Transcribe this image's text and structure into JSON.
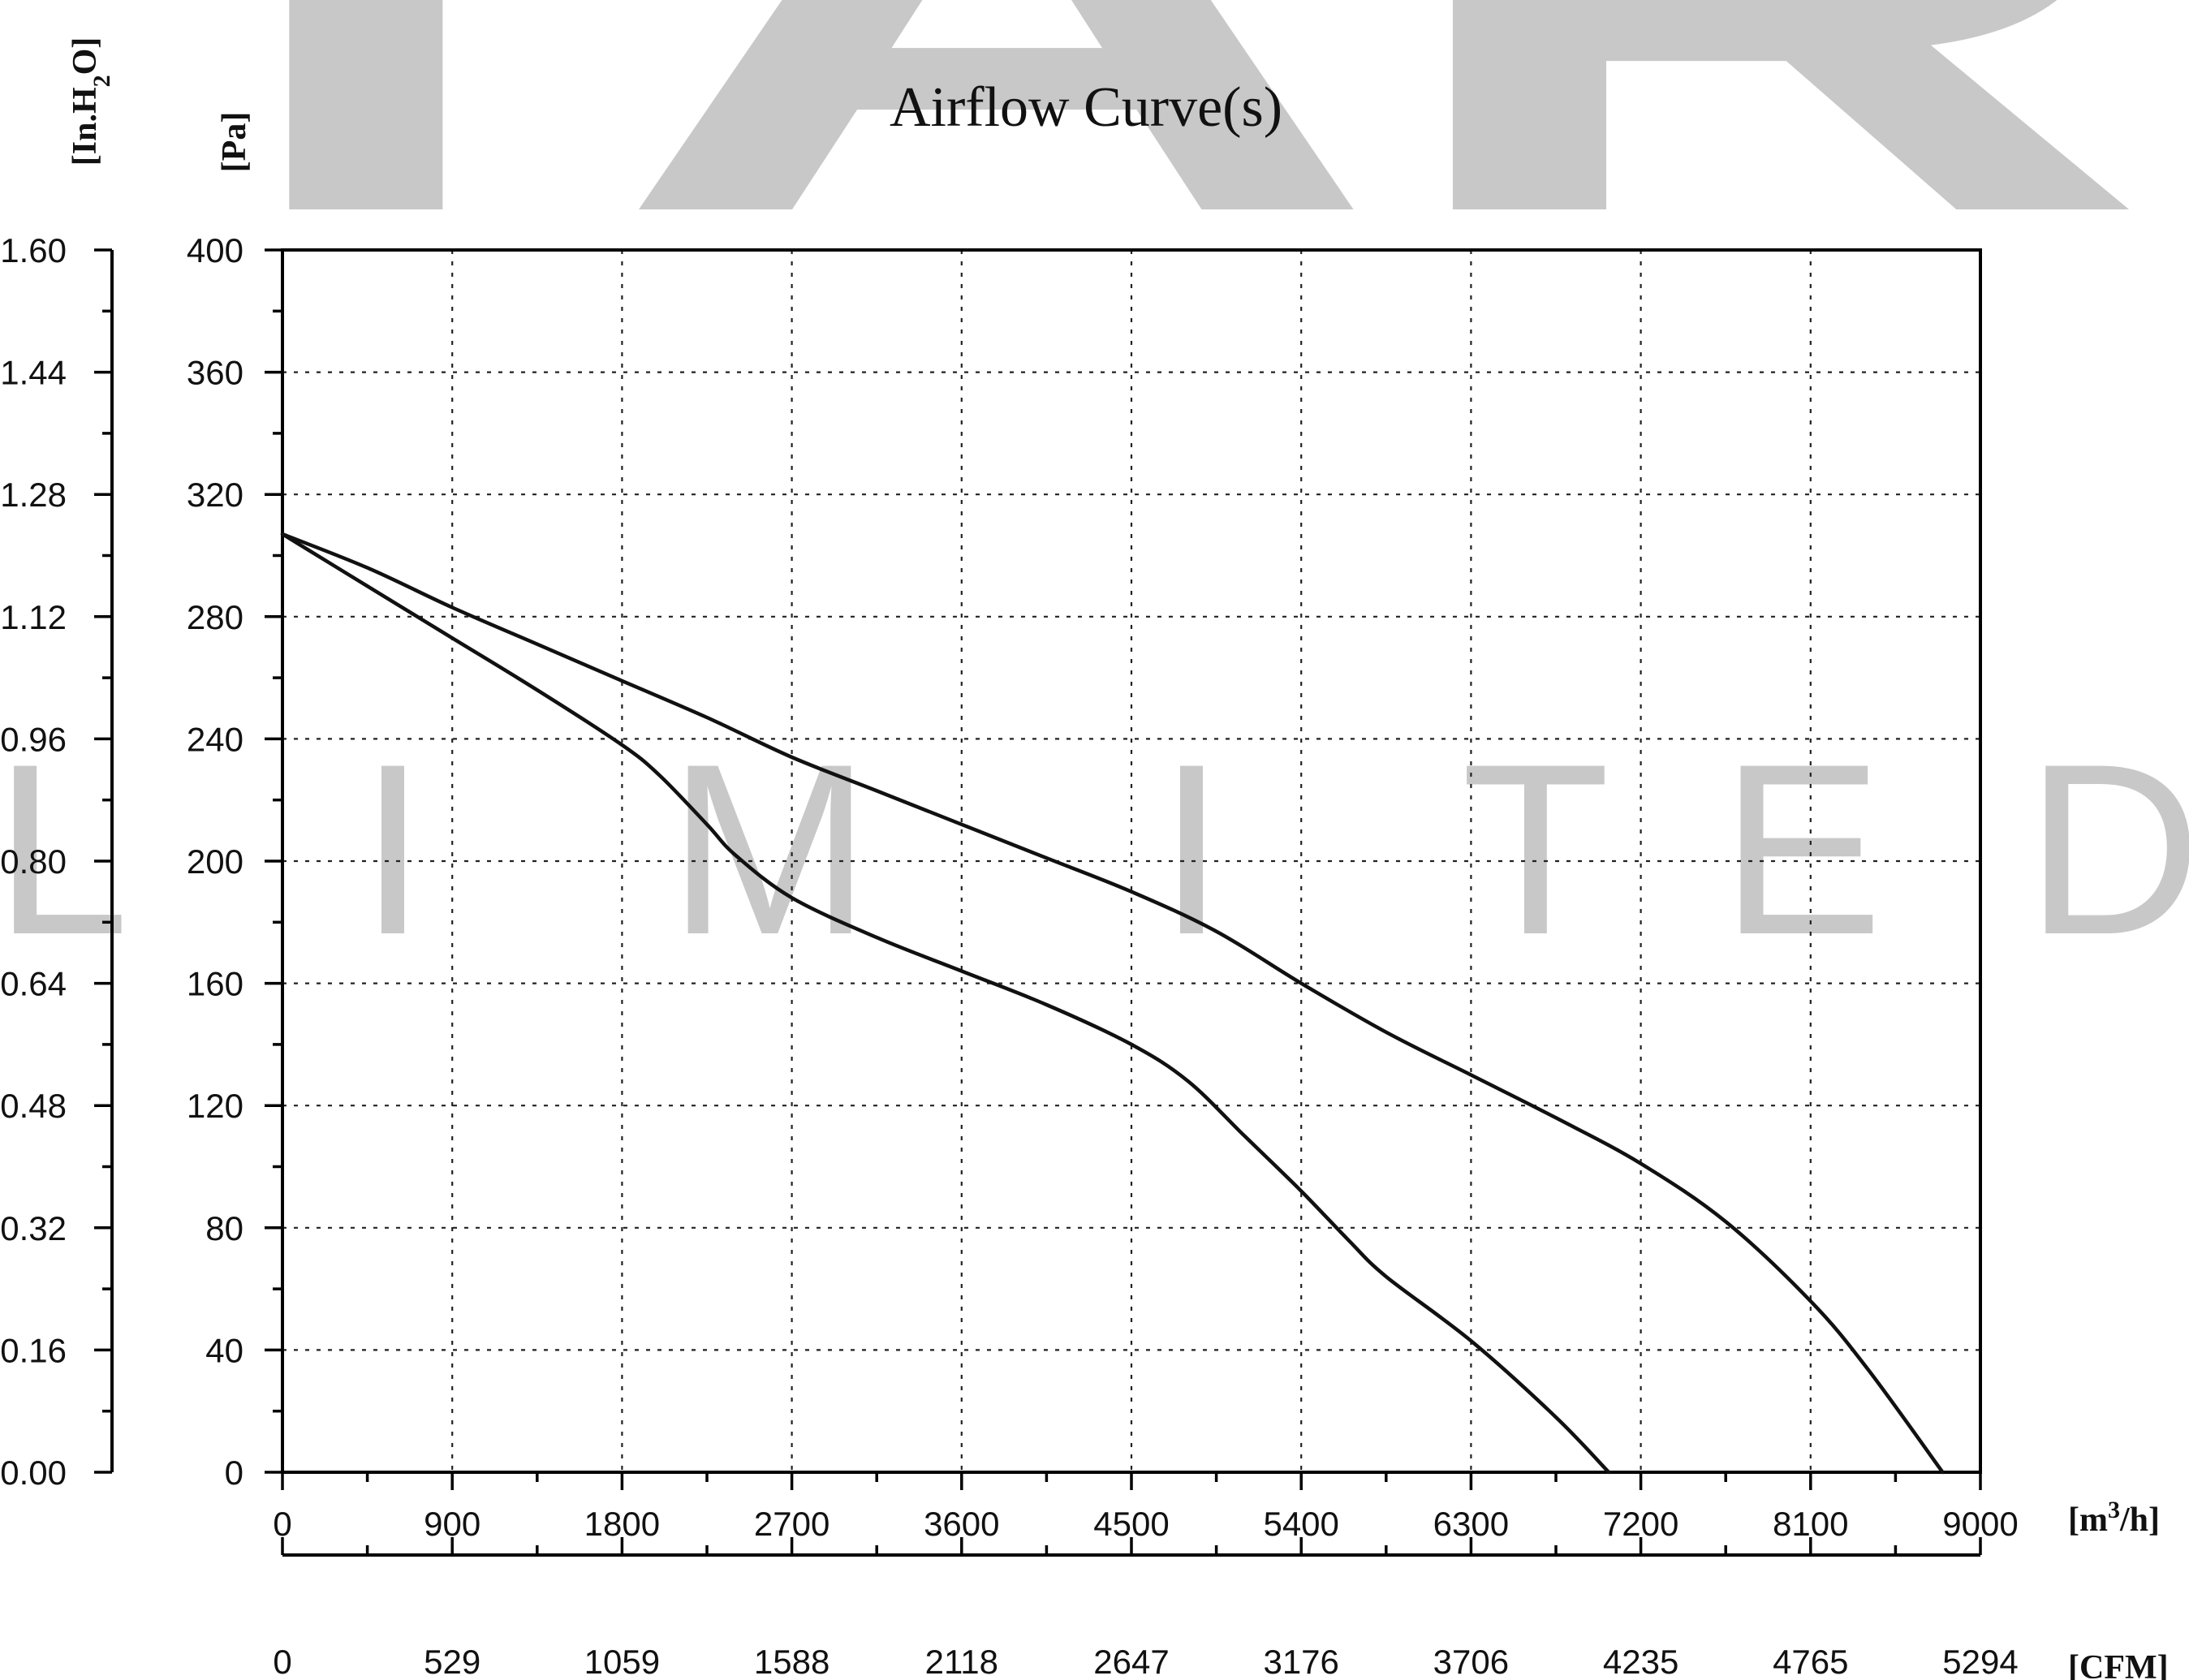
{
  "watermark": {
    "top_text": "TAR",
    "middle_letters": [
      "L",
      "I",
      "M",
      "I",
      "T",
      "E",
      "D"
    ],
    "color": "#c8c8c8"
  },
  "chart_data": {
    "type": "line",
    "title": "Airflow Curve(s)",
    "left_axis_unit": "[Pa]",
    "left_outer_axis_unit": "[In.H2O]",
    "x_unit": "[m³/h]",
    "x2_unit": "[CFM]",
    "xlim": [
      0,
      9000
    ],
    "ylim": [
      0,
      400
    ],
    "grid": true,
    "x_ticks": [
      "0",
      "900",
      "1800",
      "2700",
      "3600",
      "4500",
      "5400",
      "6300",
      "7200",
      "8100",
      "9000"
    ],
    "y_ticks": [
      "0",
      "40",
      "80",
      "120",
      "160",
      "200",
      "240",
      "280",
      "320",
      "360",
      "400"
    ],
    "x2_ticks": [
      "0",
      "529",
      "1059",
      "1588",
      "2118",
      "2647",
      "3176",
      "3706",
      "4235",
      "4765",
      "5294"
    ],
    "y2_ticks": [
      "0.00",
      "0.16",
      "0.32",
      "0.48",
      "0.64",
      "0.80",
      "0.96",
      "1.12",
      "1.28",
      "1.44",
      "1.60"
    ],
    "series": [
      {
        "points": [
          [
            0,
            307
          ],
          [
            450,
            296
          ],
          [
            900,
            283
          ],
          [
            1350,
            271
          ],
          [
            1800,
            259
          ],
          [
            2250,
            247
          ],
          [
            2700,
            234
          ],
          [
            3150,
            223
          ],
          [
            3600,
            212
          ],
          [
            4050,
            201
          ],
          [
            4500,
            190
          ],
          [
            4950,
            177
          ],
          [
            5400,
            160
          ],
          [
            5850,
            144
          ],
          [
            6300,
            130
          ],
          [
            6750,
            116
          ],
          [
            7200,
            101
          ],
          [
            7650,
            82
          ],
          [
            8100,
            56
          ],
          [
            8400,
            34
          ],
          [
            8800,
            0
          ]
        ]
      },
      {
        "points": [
          [
            0,
            307
          ],
          [
            450,
            290
          ],
          [
            900,
            273
          ],
          [
            1350,
            256
          ],
          [
            1800,
            238
          ],
          [
            2000,
            228
          ],
          [
            2250,
            212
          ],
          [
            2400,
            202
          ],
          [
            2700,
            188
          ],
          [
            3150,
            175
          ],
          [
            3600,
            164
          ],
          [
            4050,
            153
          ],
          [
            4500,
            140
          ],
          [
            4800,
            128
          ],
          [
            5100,
            110
          ],
          [
            5400,
            92
          ],
          [
            5650,
            76
          ],
          [
            5850,
            64
          ],
          [
            6300,
            43
          ],
          [
            6750,
            18
          ],
          [
            7030,
            0
          ]
        ]
      }
    ]
  }
}
